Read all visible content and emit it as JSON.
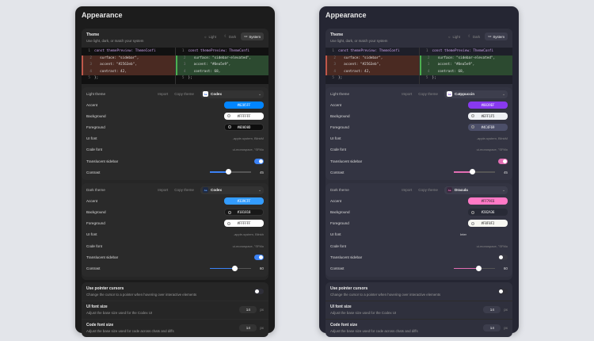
{
  "panels": [
    {
      "title": "Appearance",
      "theme": {
        "label": "Theme",
        "description": "Use light, dark, or match your system",
        "modes": [
          {
            "icon": "sun-icon",
            "label": "Light"
          },
          {
            "icon": "moon-icon",
            "label": "Dark"
          },
          {
            "icon": "monitor-icon",
            "label": "System"
          }
        ],
        "selected_mode": "System"
      },
      "diff": {
        "left": [
          [
            "1",
            "const themePreview: ThemeConfi"
          ],
          [
            "2",
            "  surface: \"sidebar\","
          ],
          [
            "3",
            "  accent: \"#2563eb\","
          ],
          [
            "4",
            "  contrast: 42,"
          ],
          [
            "5",
            "};"
          ]
        ],
        "right": [
          [
            "1",
            "const themePreview: ThemeConfi"
          ],
          [
            "2",
            "  surface: \"sidebar-elevated\","
          ],
          [
            "3",
            "  accent: \"#0ea5e9\","
          ],
          [
            "4",
            "  contrast: 68,"
          ],
          [
            "5",
            "};"
          ]
        ]
      },
      "sections": [
        {
          "name": "Light theme",
          "import": "Import",
          "copy": "Copy theme",
          "preset": "Codex",
          "badge": "Aa",
          "accent_label": "Accent",
          "accent": "#0285FF",
          "background_label": "Background",
          "background": "#FFFFFF",
          "foreground_label": "Foreground",
          "foreground": "#0D0D0D",
          "ui_font_label": "UI font",
          "ui_font": "-apple-system, BlinkM",
          "code_font_label": "Code font",
          "code_font": "ui-monospace, \"SFMo",
          "translucent_label": "Translucent sidebar",
          "translucent": true,
          "contrast_label": "Contrast",
          "contrast": "45",
          "badge_bg": "#ffffff",
          "badge_fg": "#2563eb"
        },
        {
          "name": "Dark theme",
          "import": "Import",
          "copy": "Copy theme",
          "preset": "Codex",
          "badge": "Aa",
          "accent_label": "Accent",
          "accent": "#339CFF",
          "background_label": "Background",
          "background": "#181818",
          "foreground_label": "Foreground",
          "foreground": "#FFFFFF",
          "ui_font_label": "UI font",
          "ui_font": "-apple-system, Blinkh",
          "code_font_label": "Code font",
          "code_font": "ui-monospace, \"SFMo",
          "translucent_label": "Translucent sidebar",
          "translucent": true,
          "contrast_label": "Contrast",
          "contrast": "60",
          "badge_bg": "#1e2a44",
          "badge_fg": "#6aa9ff"
        }
      ],
      "toggle_color": "#3b82f6",
      "general": [
        {
          "label": "Use pointer cursors",
          "description": "Change the cursor to a pointer when hovering over interactive elements",
          "type": "toggle",
          "value": false
        },
        {
          "label": "UI font size",
          "description": "Adjust the base size used for the Codex UI",
          "type": "number",
          "value": "14",
          "unit": "px"
        },
        {
          "label": "Code font size",
          "description": "Adjust the base size used for code across chats and diffs",
          "type": "number",
          "value": "14",
          "unit": "px"
        }
      ]
    },
    {
      "title": "Appearance",
      "theme": {
        "label": "Theme",
        "description": "Use light, dark, or match your system",
        "modes": [
          {
            "icon": "sun-icon",
            "label": "Light"
          },
          {
            "icon": "moon-icon",
            "label": "Dark"
          },
          {
            "icon": "monitor-icon",
            "label": "System"
          }
        ],
        "selected_mode": "System"
      },
      "diff": {
        "left": [
          [
            "1",
            "const themePreview: ThemeConfi"
          ],
          [
            "2",
            "  surface: \"sidebar\","
          ],
          [
            "3",
            "  accent: \"#2563eb\","
          ],
          [
            "4",
            "  contrast: 42,"
          ],
          [
            "5",
            "};"
          ]
        ],
        "right": [
          [
            "1",
            "const themePreview: ThemeConfi"
          ],
          [
            "2",
            "  surface: \"sidebar-elevated\","
          ],
          [
            "3",
            "  accent: \"#0ea5e9\","
          ],
          [
            "4",
            "  contrast: 68,"
          ],
          [
            "5",
            "};"
          ]
        ]
      },
      "sections": [
        {
          "name": "Light theme",
          "import": "Import",
          "copy": "Copy theme",
          "preset": "Catppuccin",
          "badge": "Aa",
          "accent_label": "Accent",
          "accent": "#8839EF",
          "background_label": "Background",
          "background": "#EFF1F5",
          "foreground_label": "Foreground",
          "foreground": "#4C4F69",
          "ui_font_label": "UI font",
          "ui_font": "-apple-system, BlinkM",
          "code_font_label": "Code font",
          "code_font": "ui-monospace, \"SFMo",
          "translucent_label": "Translucent sidebar",
          "translucent": true,
          "contrast_label": "Contrast",
          "contrast": "45",
          "badge_bg": "#ffffff",
          "badge_fg": "#7c3aed"
        },
        {
          "name": "Dark theme",
          "import": "Import",
          "copy": "Copy theme",
          "preset": "Dracula",
          "badge": "Aa",
          "accent_label": "Accent",
          "accent": "#FF79C6",
          "background_label": "Background",
          "background": "#282A36",
          "foreground_label": "Foreground",
          "foreground": "#F8F8F2",
          "ui_font_label": "UI font",
          "ui_font": "Inter",
          "code_font_label": "Code font",
          "code_font": "ui-monospace, \"SFMo",
          "translucent_label": "Translucent sidebar",
          "translucent": false,
          "contrast_label": "Contrast",
          "contrast": "60",
          "badge_bg": "#3a2a40",
          "badge_fg": "#ff79c6"
        }
      ],
      "toggle_color": "#e26db3",
      "general": [
        {
          "label": "Use pointer cursors",
          "description": "Change the cursor to a pointer when hovering over interactive elements",
          "type": "toggle",
          "value": false
        },
        {
          "label": "UI font size",
          "description": "Adjust the base size used for the Codex UI",
          "type": "number",
          "value": "14",
          "unit": "px"
        },
        {
          "label": "Code font size",
          "description": "Adjust the base size used for code across chats and diffs",
          "type": "number",
          "value": "14",
          "unit": "px"
        }
      ]
    }
  ]
}
